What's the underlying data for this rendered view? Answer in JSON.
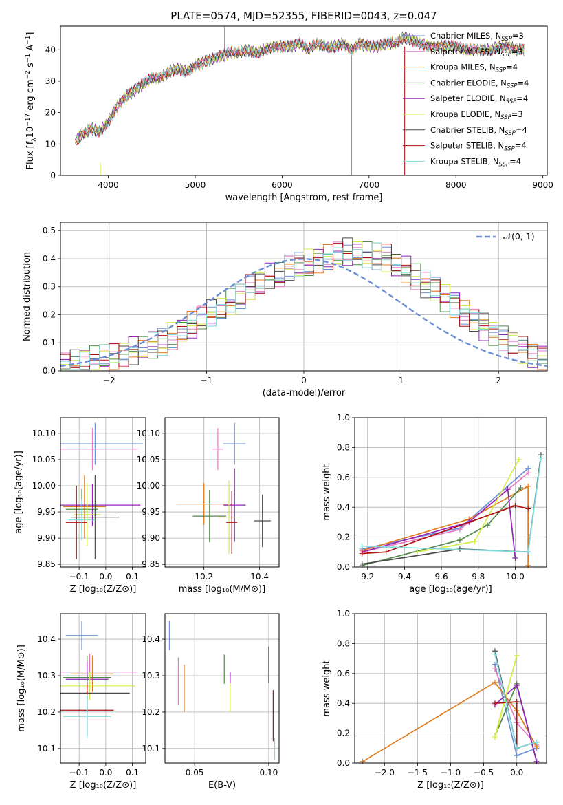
{
  "chart_data": [
    {
      "id": "spectrum",
      "type": "line",
      "title": "PLATE=0574, MJD=52355, FIBERID=0043, z=0.047",
      "xlabel": "wavelength [Angstrom, rest frame]",
      "ylabel": "Flux [f_λ 10^-17 erg cm^-2 s^-1 A^-1]",
      "xlim": [
        3450,
        9050
      ],
      "ylim": [
        0,
        47.5
      ],
      "xticks": [
        4000,
        5000,
        6000,
        7000,
        8000,
        9000
      ],
      "yticks": [
        0,
        10,
        20,
        30,
        40
      ],
      "grid": false,
      "legend_position": "upper right",
      "x": [
        3620,
        3700,
        3800,
        3900,
        4000,
        4100,
        4200,
        4300,
        4400,
        4500,
        4600,
        4700,
        4800,
        4900,
        5000,
        5100,
        5200,
        5300,
        5400,
        5500,
        5600,
        5700,
        5800,
        5900,
        6000,
        6100,
        6200,
        6300,
        6400,
        6500,
        6600,
        6700,
        6800,
        6900,
        7000,
        7100,
        7200,
        7300,
        7400,
        7500,
        7600,
        7700,
        7800,
        7900,
        8000,
        8100,
        8200,
        8300,
        8400,
        8500,
        8600,
        8700,
        8800
      ],
      "y": [
        11,
        13,
        15,
        14,
        17,
        22,
        25,
        27,
        29,
        31,
        31,
        33,
        34,
        33,
        35,
        36,
        37,
        38,
        39,
        39,
        40,
        39,
        40,
        41,
        41,
        41,
        42,
        40,
        42,
        41,
        41,
        42,
        40,
        42,
        41,
        41,
        42,
        42,
        44,
        43,
        42,
        41,
        41,
        41,
        41,
        40,
        40,
        40,
        40,
        41,
        41,
        40,
        40
      ],
      "series": [
        {
          "name": "Chabrier MILES, N_SSP=3",
          "color": "#6b8fd6"
        },
        {
          "name": "Salpeter MILES, N_SSP=3",
          "color": "#e57ac1"
        },
        {
          "name": "Kroupa MILES, N_SSP=4",
          "color": "#e07b1e"
        },
        {
          "name": "Chabrier ELODIE, N_SSP=4",
          "color": "#4f8a46"
        },
        {
          "name": "Salpeter ELODIE, N_SSP=4",
          "color": "#9522b5"
        },
        {
          "name": "Kroupa ELODIE, N_SSP=3",
          "color": "#d4ec4a"
        },
        {
          "name": "Chabrier STELIB, N_SSP=4",
          "color": "#4a4a4a"
        },
        {
          "name": "Salpeter STELIB, N_SSP=4",
          "color": "#b20f0f"
        },
        {
          "name": "Kroupa STELIB, N_SSP=4",
          "color": "#7fd9d9"
        }
      ]
    },
    {
      "id": "residuals",
      "type": "line",
      "xlabel": "(data-model)/error",
      "ylabel": "Normed distribution",
      "xlim": [
        -2.5,
        2.5
      ],
      "ylim": [
        0,
        0.53
      ],
      "xticks": [
        -2,
        -1,
        0,
        1,
        2
      ],
      "yticks": [
        0.0,
        0.1,
        0.2,
        0.3,
        0.4,
        0.5
      ],
      "grid": true,
      "legend_position": "upper right",
      "legend": "N(0, 1)",
      "bin_width": 0.1,
      "bins_start": -2.5,
      "hist": [
        0.02,
        0.03,
        0.04,
        0.04,
        0.05,
        0.05,
        0.06,
        0.07,
        0.08,
        0.09,
        0.1,
        0.12,
        0.14,
        0.16,
        0.18,
        0.2,
        0.22,
        0.24,
        0.26,
        0.29,
        0.31,
        0.33,
        0.34,
        0.36,
        0.37,
        0.38,
        0.39,
        0.4,
        0.41,
        0.42,
        0.42,
        0.41,
        0.41,
        0.4,
        0.38,
        0.36,
        0.34,
        0.31,
        0.29,
        0.26,
        0.24,
        0.21,
        0.18,
        0.16,
        0.14,
        0.12,
        0.1,
        0.08,
        0.06,
        0.05
      ],
      "gauss_label": "N(0,1)"
    },
    {
      "id": "age-Z",
      "type": "scatter",
      "xlabel": "Z [log10(Z/Z⊙)]",
      "ylabel": "age [log10(age/yr)]",
      "xlim": [
        -0.17,
        0.15
      ],
      "ylim": [
        9.845,
        10.13
      ],
      "xticks": [
        -0.1,
        0.0,
        0.1
      ],
      "yticks": [
        9.85,
        9.9,
        9.95,
        10.0,
        10.05,
        10.1
      ],
      "grid": true,
      "points": [
        {
          "x": -0.04,
          "xerr": 0.18,
          "y": 10.08,
          "yerr": 0.04
        },
        {
          "x": -0.05,
          "xerr": 0.17,
          "y": 10.07,
          "yerr": 0.04
        },
        {
          "x": -0.08,
          "xerr": 0.08,
          "y": 9.96,
          "yerr": 0.06
        },
        {
          "x": -0.09,
          "xerr": 0.06,
          "y": 9.955,
          "yerr": 0.04
        },
        {
          "x": -0.05,
          "xerr": 0.18,
          "y": 9.963,
          "yerr": 0.04
        },
        {
          "x": -0.07,
          "xerr": 0.05,
          "y": 9.945,
          "yerr": 0.06
        },
        {
          "x": -0.04,
          "xerr": 0.09,
          "y": 9.94,
          "yerr": 0.08
        },
        {
          "x": -0.11,
          "xerr": 0.04,
          "y": 9.93,
          "yerr": 0.07
        },
        {
          "x": -0.09,
          "xerr": 0.05,
          "y": 9.935,
          "yerr": 0.04
        }
      ]
    },
    {
      "id": "age-mass",
      "type": "scatter",
      "xlabel": "mass [log10(M/M⊙)]",
      "xlim": [
        10.06,
        10.47
      ],
      "ylim": [
        9.845,
        10.13
      ],
      "xticks": [
        10.2,
        10.4
      ],
      "yticks": [
        9.85,
        9.9,
        9.95,
        10.0,
        10.05,
        10.1
      ],
      "grid": true,
      "points": [
        {
          "x": 10.31,
          "xerr": 0.04,
          "y": 10.08,
          "yerr": 0.04
        },
        {
          "x": 10.25,
          "xerr": 0.02,
          "y": 10.07,
          "yerr": 0.04
        },
        {
          "x": 10.2,
          "xerr": 0.1,
          "y": 9.965,
          "yerr": 0.04
        },
        {
          "x": 10.22,
          "xerr": 0.06,
          "y": 9.942,
          "yerr": 0.05
        },
        {
          "x": 10.31,
          "xerr": 0.04,
          "y": 9.963,
          "yerr": 0.07
        },
        {
          "x": 10.29,
          "xerr": 0.04,
          "y": 9.94,
          "yerr": 0.07
        },
        {
          "x": 10.41,
          "xerr": 0.03,
          "y": 9.933,
          "yerr": 0.05
        },
        {
          "x": 10.3,
          "xerr": 0.02,
          "y": 9.93,
          "yerr": 0.06
        }
      ]
    },
    {
      "id": "weight-age",
      "type": "line",
      "xlabel": "age [log10(age/yr)]",
      "ylabel": "mass weight",
      "xlim": [
        9.13,
        10.17
      ],
      "ylim": [
        0,
        1
      ],
      "xticks": [
        9.2,
        9.4,
        9.6,
        9.8,
        10.0
      ],
      "yticks": [
        0.0,
        0.2,
        0.4,
        0.6,
        0.8,
        1.0
      ],
      "grid": true,
      "series": [
        {
          "name": "Chabrier MILES, N_SSP=3",
          "x": [
            9.17,
            9.7,
            10.07
          ],
          "y": [
            0.12,
            0.26,
            0.66
          ]
        },
        {
          "name": "Salpeter MILES, N_SSP=3",
          "x": [
            9.17,
            9.7,
            10.07
          ],
          "y": [
            0.1,
            0.25,
            0.63
          ]
        },
        {
          "name": "Kroupa MILES, N_SSP=4",
          "x": [
            9.17,
            9.75,
            10.07,
            10.07
          ],
          "y": [
            0.11,
            0.32,
            0.54,
            0.01
          ]
        },
        {
          "name": "Chabrier ELODIE, N_SSP=4",
          "x": [
            9.17,
            9.7,
            9.85,
            10.03
          ],
          "y": [
            0.01,
            0.18,
            0.28,
            0.53
          ]
        },
        {
          "name": "Salpeter ELODIE, N_SSP=4",
          "x": [
            9.17,
            9.75,
            9.96,
            10.0
          ],
          "y": [
            0.1,
            0.3,
            0.52,
            0.06
          ]
        },
        {
          "name": "Kroupa ELODIE, N_SSP=3",
          "x": [
            9.47,
            9.78,
            10.02
          ],
          "y": [
            0.1,
            0.17,
            0.72
          ]
        },
        {
          "name": "Chabrier STELIB, N_SSP=4",
          "x": [
            9.17,
            9.7,
            10.07,
            10.14
          ],
          "y": [
            0.02,
            0.12,
            0.1,
            0.75
          ]
        },
        {
          "name": "Salpeter STELIB, N_SSP=4",
          "x": [
            9.17,
            9.3,
            10.0,
            10.07
          ],
          "y": [
            0.09,
            0.1,
            0.41,
            0.39
          ]
        },
        {
          "name": "Kroupa STELIB, N_SSP=4",
          "x": [
            9.17,
            10.07,
            10.14
          ],
          "y": [
            0.14,
            0.1,
            0.73
          ]
        }
      ]
    },
    {
      "id": "mass-Z",
      "type": "scatter",
      "xlabel": "Z [log10(Z/Z⊙)]",
      "ylabel": "mass [log10(M/M⊙)]",
      "xlim": [
        -0.17,
        0.15
      ],
      "ylim": [
        10.06,
        10.47
      ],
      "xticks": [
        -0.1,
        0.0,
        0.1
      ],
      "yticks": [
        10.1,
        10.2,
        10.3,
        10.4
      ],
      "grid": true,
      "points": [
        {
          "x": -0.09,
          "xerr": 0.06,
          "y": 10.41,
          "yerr": 0.04
        },
        {
          "x": -0.06,
          "xerr": 0.18,
          "y": 10.31,
          "yerr": 0.05
        },
        {
          "x": -0.05,
          "xerr": 0.08,
          "y": 10.305,
          "yerr": 0.05
        },
        {
          "x": -0.07,
          "xerr": 0.09,
          "y": 10.295,
          "yerr": 0.06
        },
        {
          "x": -0.07,
          "xerr": 0.08,
          "y": 10.29,
          "yerr": 0.05
        },
        {
          "x": -0.06,
          "xerr": 0.17,
          "y": 10.272,
          "yerr": 0.04
        },
        {
          "x": -0.07,
          "xerr": 0.16,
          "y": 10.252,
          "yerr": 0.05
        },
        {
          "x": -0.07,
          "xerr": 0.1,
          "y": 10.205,
          "yerr": 0.07
        },
        {
          "x": -0.07,
          "xerr": 0.09,
          "y": 10.188,
          "yerr": 0.06
        }
      ]
    },
    {
      "id": "mass-EBV",
      "type": "scatter",
      "xlabel": "E(B-V)",
      "xlim": [
        0.03,
        0.107
      ],
      "ylim": [
        10.06,
        10.47
      ],
      "xticks": [
        0.05,
        0.1
      ],
      "yticks": [
        10.1,
        10.2,
        10.3,
        10.4
      ],
      "grid": true,
      "points": [
        {
          "x": 0.033,
          "y": 10.41,
          "yerr": 0.04
        },
        {
          "x": 0.039,
          "y": 10.285,
          "yerr": 0.065
        },
        {
          "x": 0.043,
          "y": 10.265,
          "yerr": 0.065
        },
        {
          "x": 0.07,
          "y": 10.318,
          "yerr": 0.04
        },
        {
          "x": 0.074,
          "y": 10.29,
          "yerr": 0.02
        },
        {
          "x": 0.074,
          "y": 10.24,
          "yerr": 0.04
        },
        {
          "x": 0.1,
          "y": 10.33,
          "yerr": 0.05
        },
        {
          "x": 0.103,
          "y": 10.19,
          "yerr": 0.07
        },
        {
          "x": 0.104,
          "y": 10.1,
          "yerr": 0.03
        }
      ]
    },
    {
      "id": "weight-Z",
      "type": "line",
      "xlabel": "Z [log10(Z/Z⊙)]",
      "ylabel": "mass weight",
      "xlim": [
        -2.45,
        0.45
      ],
      "ylim": [
        0,
        1
      ],
      "xticks": [
        -2.0,
        -1.5,
        -1.0,
        -0.5,
        0.0
      ],
      "yticks": [
        0.0,
        0.2,
        0.4,
        0.6,
        0.8,
        1.0
      ],
      "grid": true,
      "series": [
        {
          "name": "Chabrier MILES, N_SSP=3",
          "x": [
            -0.33,
            0.0,
            0.3
          ],
          "y": [
            0.66,
            0.05,
            0.1
          ]
        },
        {
          "name": "Salpeter MILES, N_SSP=3",
          "x": [
            -0.33,
            0.0,
            0.3
          ],
          "y": [
            0.63,
            0.27,
            0.12
          ]
        },
        {
          "name": "Kroupa MILES, N_SSP=4",
          "x": [
            -2.33,
            -0.33,
            0.0,
            0.3
          ],
          "y": [
            0.01,
            0.54,
            0.35,
            0.11
          ]
        },
        {
          "name": "Chabrier ELODIE, N_SSP=4",
          "x": [
            -0.33,
            0.0,
            0.3
          ],
          "y": [
            0.18,
            0.53,
            0.01
          ]
        },
        {
          "name": "Salpeter ELODIE, N_SSP=4",
          "x": [
            -0.33,
            0.0,
            0.3
          ],
          "y": [
            0.39,
            0.52,
            0.01
          ]
        },
        {
          "name": "Kroupa ELODIE, N_SSP=3",
          "x": [
            -0.33,
            0.0,
            -0.33
          ],
          "y": [
            0.17,
            0.72,
            0.18
          ]
        },
        {
          "name": "Chabrier STELIB, N_SSP=4",
          "x": [
            -0.33,
            0.0,
            0.3
          ],
          "y": [
            0.75,
            0.1,
            0.14
          ]
        },
        {
          "name": "Salpeter STELIB, N_SSP=4",
          "x": [
            -0.33,
            0.0,
            0.0
          ],
          "y": [
            0.4,
            0.41,
            0.1
          ]
        },
        {
          "name": "Kroupa STELIB, N_SSP=4",
          "x": [
            -0.33,
            0.0,
            0.3
          ],
          "y": [
            0.73,
            0.1,
            0.14
          ]
        }
      ]
    }
  ]
}
